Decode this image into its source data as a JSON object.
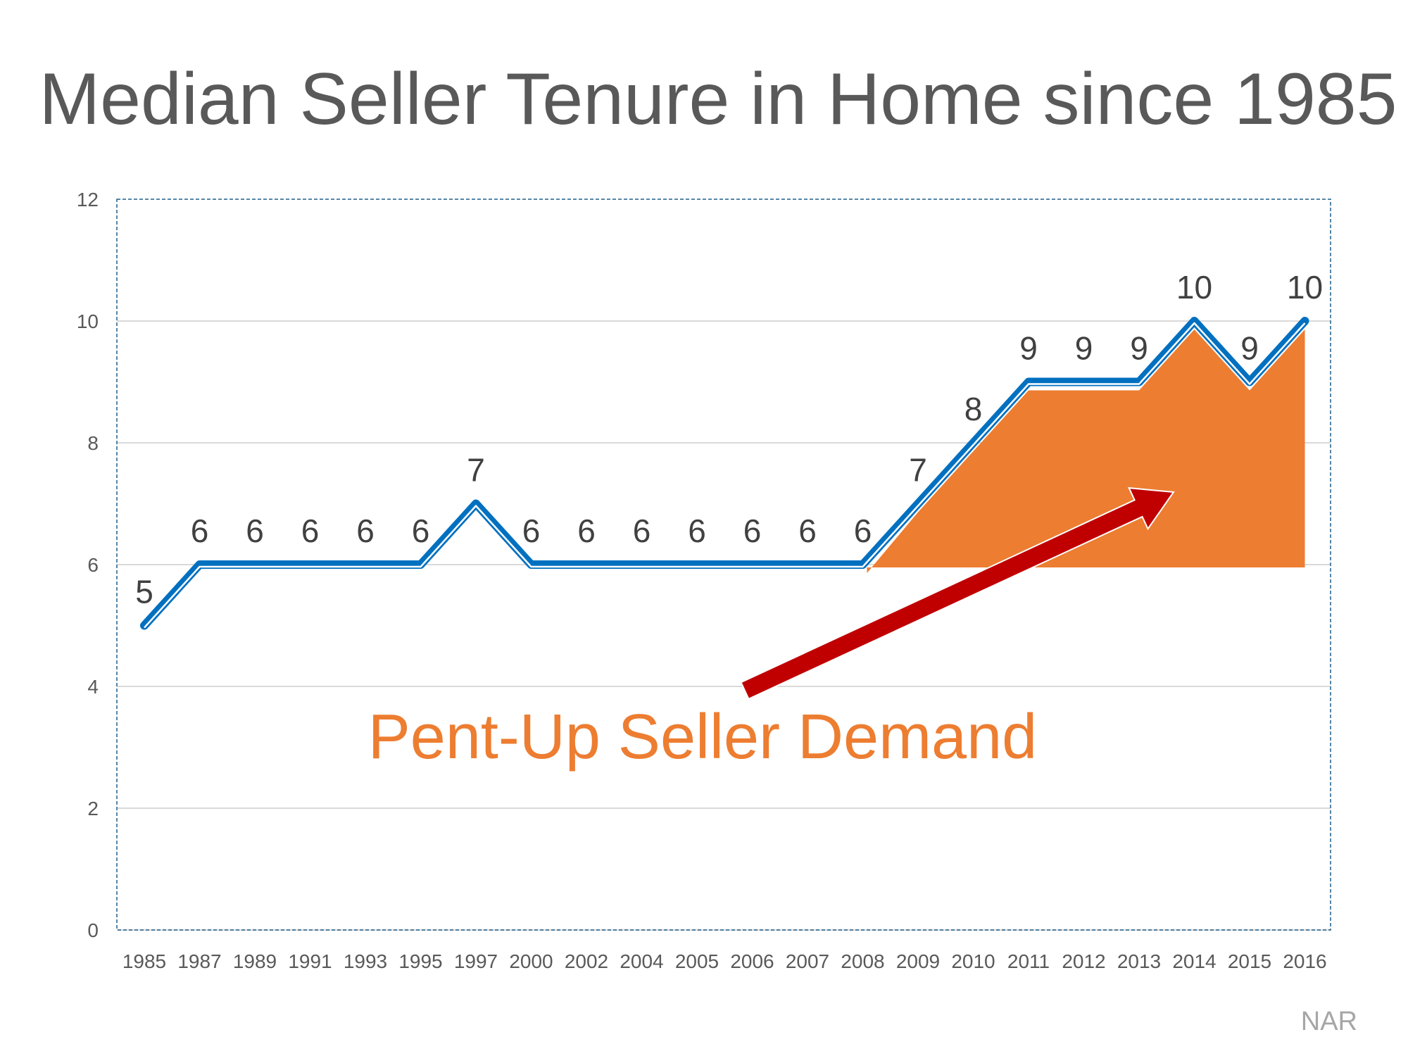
{
  "chart_data": {
    "type": "line",
    "title": "Median Seller Tenure in Home since 1985",
    "categories": [
      "1985",
      "1987",
      "1989",
      "1991",
      "1993",
      "1995",
      "1997",
      "2000",
      "2002",
      "2004",
      "2005",
      "2006",
      "2007",
      "2008",
      "2009",
      "2010",
      "2011",
      "2012",
      "2013",
      "2014",
      "2015",
      "2016"
    ],
    "values": [
      5,
      6,
      6,
      6,
      6,
      6,
      7,
      6,
      6,
      6,
      6,
      6,
      6,
      6,
      7,
      8,
      9,
      9,
      9,
      10,
      9,
      10
    ],
    "data_labels": [
      "5",
      "6",
      "6",
      "6",
      "6",
      "6",
      "7",
      "6",
      "6",
      "6",
      "6",
      "6",
      "6",
      "6",
      "7",
      "8",
      "9",
      "9",
      "9",
      "10",
      "9",
      "10"
    ],
    "ylim": [
      0,
      12
    ],
    "yticks": [
      "0",
      "2",
      "4",
      "6",
      "8",
      "10",
      "12"
    ],
    "grid": true,
    "legend": "none",
    "shaded_region": {
      "from": "2008",
      "to": "2016",
      "baseline": 6
    },
    "annotation": "Pent-Up Seller Demand",
    "source": "NAR",
    "colors": {
      "line": "#0070c0",
      "fill": "#ed7d31",
      "arrow": "#c00000",
      "annotation": "#ed7d31",
      "title": "#595959"
    }
  }
}
